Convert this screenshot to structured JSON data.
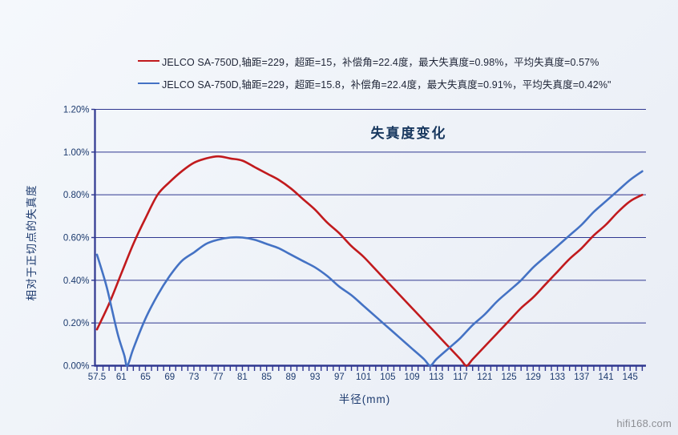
{
  "page": {
    "background": "#f1f4f9",
    "watermark": "hifi168.com"
  },
  "chart_data": {
    "type": "line",
    "title": "失真度变化",
    "xlabel": "半径(mm)",
    "ylabel": "相对于正切点的失真度",
    "grid": "horizontal",
    "legend_position": "top",
    "ylim": [
      0,
      1.2
    ],
    "xlim": [
      57.5,
      147.6
    ],
    "y_ticks": [
      "0.00%",
      "0.20%",
      "0.40%",
      "0.60%",
      "0.80%",
      "1.00%",
      "1.20%"
    ],
    "x_ticks": [
      "57.5",
      "61",
      "65",
      "69",
      "73",
      "77",
      "81",
      "85",
      "89",
      "93",
      "97",
      "101",
      "105",
      "109",
      "113",
      "117",
      "121",
      "125",
      "129",
      "133",
      "137",
      "141",
      "145"
    ],
    "axis_color": "#2f3790",
    "tick_label_color": "#1c3a6e",
    "series": [
      {
        "name": "JELCO SA-750D,轴距=229，超距=15，补偿角=22.4度，最大失真度=0.98%，平均失真度=0.57%",
        "color": "#c11a1d",
        "points": [
          [
            57.5,
            0.17
          ],
          [
            59,
            0.29
          ],
          [
            61,
            0.43
          ],
          [
            63,
            0.57
          ],
          [
            65,
            0.69
          ],
          [
            67,
            0.8
          ],
          [
            69,
            0.86
          ],
          [
            71,
            0.91
          ],
          [
            73,
            0.95
          ],
          [
            75,
            0.97
          ],
          [
            77,
            0.98
          ],
          [
            79,
            0.97
          ],
          [
            81,
            0.96
          ],
          [
            83,
            0.93
          ],
          [
            85,
            0.9
          ],
          [
            87,
            0.87
          ],
          [
            89,
            0.83
          ],
          [
            91,
            0.78
          ],
          [
            93,
            0.73
          ],
          [
            95,
            0.67
          ],
          [
            97,
            0.62
          ],
          [
            99,
            0.56
          ],
          [
            101,
            0.51
          ],
          [
            103,
            0.45
          ],
          [
            105,
            0.39
          ],
          [
            107,
            0.33
          ],
          [
            109,
            0.27
          ],
          [
            111,
            0.21
          ],
          [
            113,
            0.15
          ],
          [
            115,
            0.09
          ],
          [
            117,
            0.03
          ],
          [
            118,
            0.0
          ],
          [
            119,
            0.03
          ],
          [
            121,
            0.09
          ],
          [
            123,
            0.15
          ],
          [
            125,
            0.21
          ],
          [
            127,
            0.27
          ],
          [
            129,
            0.32
          ],
          [
            131,
            0.38
          ],
          [
            133,
            0.44
          ],
          [
            135,
            0.5
          ],
          [
            137,
            0.55
          ],
          [
            139,
            0.61
          ],
          [
            141,
            0.66
          ],
          [
            143,
            0.72
          ],
          [
            145,
            0.77
          ],
          [
            147,
            0.8
          ]
        ]
      },
      {
        "name": "JELCO SA-750D,轴距=229，超距=15.8，补偿角=22.4度，最大失真度=0.91%，平均失真度=0.42%\"",
        "color": "#4472c4",
        "points": [
          [
            57.5,
            0.52
          ],
          [
            58.5,
            0.38
          ],
          [
            59.5,
            0.26
          ],
          [
            60.5,
            0.14
          ],
          [
            61.5,
            0.05
          ],
          [
            62,
            0.0
          ],
          [
            63,
            0.08
          ],
          [
            65,
            0.22
          ],
          [
            67,
            0.33
          ],
          [
            69,
            0.42
          ],
          [
            71,
            0.49
          ],
          [
            73,
            0.53
          ],
          [
            75,
            0.57
          ],
          [
            77,
            0.59
          ],
          [
            79,
            0.6
          ],
          [
            81,
            0.6
          ],
          [
            83,
            0.59
          ],
          [
            85,
            0.57
          ],
          [
            87,
            0.55
          ],
          [
            89,
            0.52
          ],
          [
            91,
            0.49
          ],
          [
            93,
            0.46
          ],
          [
            95,
            0.42
          ],
          [
            97,
            0.37
          ],
          [
            99,
            0.33
          ],
          [
            101,
            0.28
          ],
          [
            103,
            0.23
          ],
          [
            105,
            0.18
          ],
          [
            107,
            0.13
          ],
          [
            109,
            0.08
          ],
          [
            111,
            0.03
          ],
          [
            112,
            0.0
          ],
          [
            113,
            0.03
          ],
          [
            115,
            0.08
          ],
          [
            117,
            0.13
          ],
          [
            119,
            0.19
          ],
          [
            121,
            0.24
          ],
          [
            123,
            0.3
          ],
          [
            125,
            0.35
          ],
          [
            127,
            0.4
          ],
          [
            129,
            0.46
          ],
          [
            131,
            0.51
          ],
          [
            133,
            0.56
          ],
          [
            135,
            0.61
          ],
          [
            137,
            0.66
          ],
          [
            139,
            0.72
          ],
          [
            141,
            0.77
          ],
          [
            143,
            0.82
          ],
          [
            145,
            0.87
          ],
          [
            147,
            0.91
          ]
        ]
      }
    ]
  }
}
